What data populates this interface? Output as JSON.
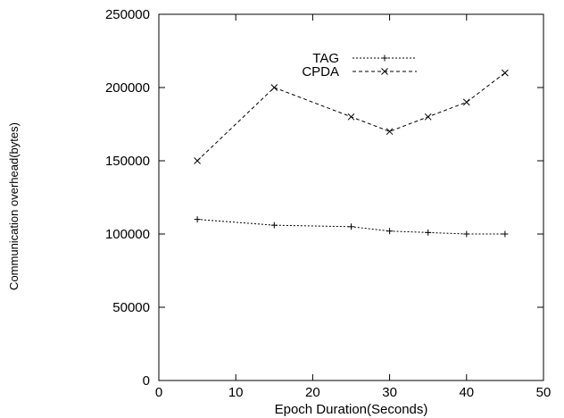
{
  "chart_data": {
    "type": "line",
    "xlabel": "Epoch Duration(Seconds)",
    "ylabel": "Communication overhead(bytes)",
    "xlim": [
      0,
      50
    ],
    "ylim": [
      0,
      250000
    ],
    "xticks": [
      0,
      10,
      20,
      30,
      40,
      50
    ],
    "yticks": [
      0,
      50000,
      100000,
      150000,
      200000,
      250000
    ],
    "grid": false,
    "legend_position": "top-center",
    "series": [
      {
        "name": "TAG",
        "marker": "plus",
        "line_style": "dotted",
        "color": "#000000",
        "x": [
          5,
          15,
          25,
          30,
          35,
          40,
          45
        ],
        "y": [
          110000,
          106000,
          105000,
          102000,
          101000,
          100000,
          100000
        ]
      },
      {
        "name": "CPDA",
        "marker": "cross",
        "line_style": "dashed",
        "color": "#000000",
        "x": [
          5,
          15,
          25,
          30,
          35,
          40,
          45
        ],
        "y": [
          150000,
          200000,
          180000,
          170000,
          180000,
          190000,
          210000
        ]
      }
    ]
  }
}
